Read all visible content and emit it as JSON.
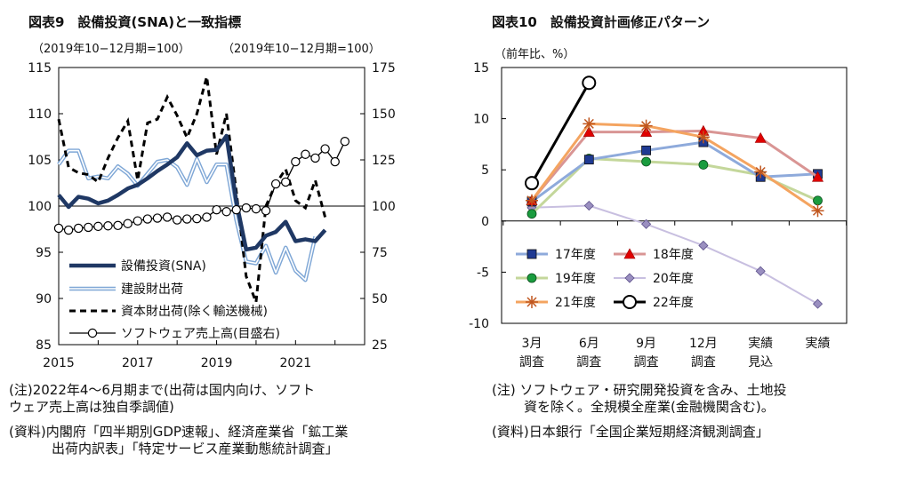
{
  "chart_data": [
    {
      "type": "line",
      "title": "図表9　設備投資(SNA)と一致指標",
      "left_unit": "（2019年10−12月期=100）",
      "right_unit": "（2019年10−12月期=100）",
      "ylim_left": [
        85,
        115
      ],
      "ylim_right": [
        25,
        175
      ],
      "yticks_left": [
        "115",
        "110",
        "105",
        "100",
        "95",
        "90",
        "85"
      ],
      "yticks_right": [
        "175",
        "150",
        "125",
        "100",
        "75",
        "50",
        "25"
      ],
      "x_labels": [
        "2015",
        "2017",
        "2019",
        "2021"
      ],
      "series": [
        {
          "name": "設備投資(SNA)",
          "axis": "left",
          "x": [
            2015.0,
            2015.25,
            2015.5,
            2015.75,
            2016.0,
            2016.25,
            2016.5,
            2016.75,
            2017.0,
            2017.25,
            2017.5,
            2017.75,
            2018.0,
            2018.25,
            2018.5,
            2018.75,
            2019.0,
            2019.25,
            2019.5,
            2019.75,
            2020.0,
            2020.25,
            2020.5,
            2020.75,
            2021.0,
            2021.25,
            2021.5,
            2021.75,
            2022.0,
            2022.25
          ],
          "values": [
            101.2,
            99.9,
            101.0,
            100.8,
            100.3,
            100.6,
            101.2,
            101.9,
            102.3,
            103.0,
            103.8,
            104.5,
            105.3,
            106.8,
            105.5,
            106.0,
            106.1,
            107.6,
            100.5,
            95.3,
            95.5,
            96.8,
            97.2,
            98.3,
            96.2,
            96.4,
            96.2,
            97.4,
            null,
            null
          ]
        },
        {
          "name": "建設財出荷",
          "axis": "left",
          "x": [
            2015.0,
            2015.25,
            2015.5,
            2015.75,
            2016.0,
            2016.25,
            2016.5,
            2016.75,
            2017.0,
            2017.25,
            2017.5,
            2017.75,
            2018.0,
            2018.25,
            2018.5,
            2018.75,
            2019.0,
            2019.25,
            2019.5,
            2019.75,
            2020.0,
            2020.25,
            2020.5,
            2020.75,
            2021.0,
            2021.25,
            2021.5,
            2021.75,
            2022.0,
            2022.25
          ],
          "values": [
            104.5,
            106.0,
            106.0,
            103.0,
            103.2,
            103.0,
            104.3,
            103.5,
            102.2,
            103.5,
            104.8,
            105.0,
            104.2,
            102.3,
            105.1,
            102.6,
            104.5,
            104.5,
            98.5,
            94.0,
            93.8,
            95.7,
            92.8,
            95.5,
            93.0,
            92.0,
            96.7,
            null,
            null,
            null
          ]
        },
        {
          "name": "資本財出荷(除く輸送機械)",
          "axis": "right",
          "x": [
            2015.0,
            2015.25,
            2015.5,
            2015.75,
            2016.0,
            2016.25,
            2016.5,
            2016.75,
            2017.0,
            2017.25,
            2017.5,
            2017.75,
            2018.0,
            2018.25,
            2018.5,
            2018.75,
            2019.0,
            2019.25,
            2019.5,
            2019.75,
            2020.0,
            2020.25,
            2020.5,
            2020.75,
            2021.0,
            2021.25,
            2021.5,
            2021.75,
            2022.0,
            2022.25
          ],
          "values": [
            147,
            121,
            118,
            117,
            113,
            126,
            137,
            146,
            114,
            145,
            147,
            159,
            149,
            137,
            150,
            170,
            128,
            150,
            108,
            62,
            48,
            100,
            112,
            120,
            103,
            99,
            114,
            94,
            null,
            null
          ]
        },
        {
          "name": "ソフトウェア売上高(目盛右)",
          "axis": "right",
          "x": [
            2015.0,
            2015.25,
            2015.5,
            2015.75,
            2016.0,
            2016.25,
            2016.5,
            2016.75,
            2017.0,
            2017.25,
            2017.5,
            2017.75,
            2018.0,
            2018.25,
            2018.5,
            2018.75,
            2019.0,
            2019.25,
            2019.5,
            2019.75,
            2020.0,
            2020.25,
            2020.5,
            2020.75,
            2021.0,
            2021.25,
            2021.5,
            2021.75,
            2022.0,
            2022.25
          ],
          "values": [
            88,
            87,
            88,
            88.5,
            89,
            89.3,
            89.5,
            90.5,
            92,
            93,
            93.5,
            94,
            92.5,
            93,
            93.2,
            94,
            98,
            97,
            98,
            99,
            98.5,
            97.5,
            112,
            113,
            124,
            128,
            126,
            131,
            124,
            135
          ]
        }
      ],
      "reference_line": 100
    },
    {
      "type": "line",
      "title": "図表10　設備投資計画修正パターン",
      "unit": "（前年比、%）",
      "ylim": [
        -10,
        15
      ],
      "yticks": [
        "15",
        "10",
        "5",
        "0",
        "-5",
        "-10"
      ],
      "categories": [
        [
          "3月",
          "調査"
        ],
        [
          "6月",
          "調査"
        ],
        [
          "9月",
          "調査"
        ],
        [
          "12月",
          "調査"
        ],
        [
          "実績",
          "見込"
        ],
        [
          "実績",
          ""
        ]
      ],
      "series": [
        {
          "name": "17年度",
          "color": "#8eaadb",
          "values": [
            1.9,
            6.0,
            6.9,
            7.7,
            4.3,
            4.6
          ]
        },
        {
          "name": "18年度",
          "color": "#d99594",
          "values": [
            2.0,
            8.7,
            8.7,
            8.8,
            8.1,
            4.3
          ]
        },
        {
          "name": "19年度",
          "color": "#c4d79b",
          "values": [
            0.7,
            6.1,
            5.8,
            5.5,
            4.5,
            2.0
          ]
        },
        {
          "name": "20年度",
          "color": "#c8bfe0",
          "values": [
            1.3,
            1.5,
            -0.3,
            -2.4,
            -4.9,
            -8.1
          ]
        },
        {
          "name": "21年度",
          "color": "#f4a460",
          "values": [
            2.0,
            9.5,
            9.3,
            8.2,
            4.8,
            1.0
          ]
        },
        {
          "name": "22年度",
          "color": "#000000",
          "values": [
            3.7,
            13.5,
            null,
            null,
            null,
            null
          ]
        }
      ]
    }
  ],
  "left_notes": [
    "(注)2022年4〜6月期まで(出荷は国内向け、ソフト",
    "ウェア売上高は独自季調値)",
    "(資料)内閣府「四半期別GDP速報」、経済産業省「鉱工業",
    "出荷内訳表」「特定サービス産業動態統計調査」"
  ],
  "right_notes": [
    "(注) ソフトウェア・研究開発投資を含み、土地投",
    "資を除く。全規模全産業(金融機関含む)。",
    "(資料)日本銀行「全国企業短期経済観測調査」"
  ]
}
